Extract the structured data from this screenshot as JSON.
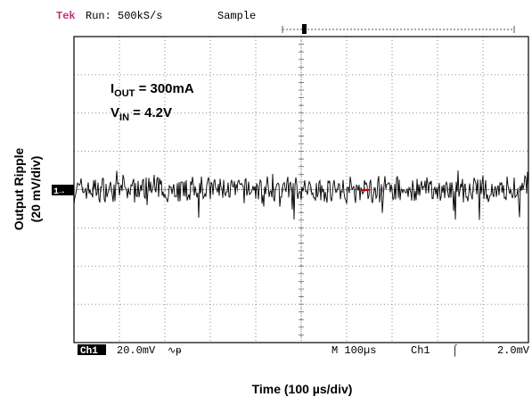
{
  "header": {
    "brand": "Tek",
    "run_status": "Run: 500kS/s",
    "acquire_mode": "Sample"
  },
  "chart_data": {
    "type": "line",
    "title": "",
    "xlabel": "Time (100 µs/div)",
    "ylabel_line1": "Output Ripple",
    "ylabel_line2": "(20 mV/div)",
    "x_divisions": 10,
    "y_divisions": 8,
    "xlim_us": [
      -500,
      500
    ],
    "ylim_mV": [
      -80,
      80
    ],
    "grid": true,
    "annotations": {
      "iout": {
        "label": "I",
        "sub": "OUT",
        "value": " = 300mA"
      },
      "vin": {
        "label": "V",
        "sub": "IN",
        "value": " = 4.2V"
      }
    },
    "series": [
      {
        "channel_marker": "1→",
        "color": "#000000",
        "baseline_mV": 0,
        "noise_peak_to_peak_mV": 16,
        "spike_max_mV": 10,
        "spike_min_mV": -16
      }
    ],
    "trigger_level_color": "#cc0000"
  },
  "footer": {
    "ch_label": "Ch1",
    "ch_scale": "20.0mV",
    "bw_limit_symbol": "∿ᵽ",
    "timebase": "M 100µs",
    "trigger_source": "Ch1",
    "trigger_slope_symbol": "⌠",
    "trigger_level": "2.0mV"
  },
  "colors": {
    "brand": "#c0307a",
    "grid": "#6a6a6a",
    "trace": "#000000"
  }
}
